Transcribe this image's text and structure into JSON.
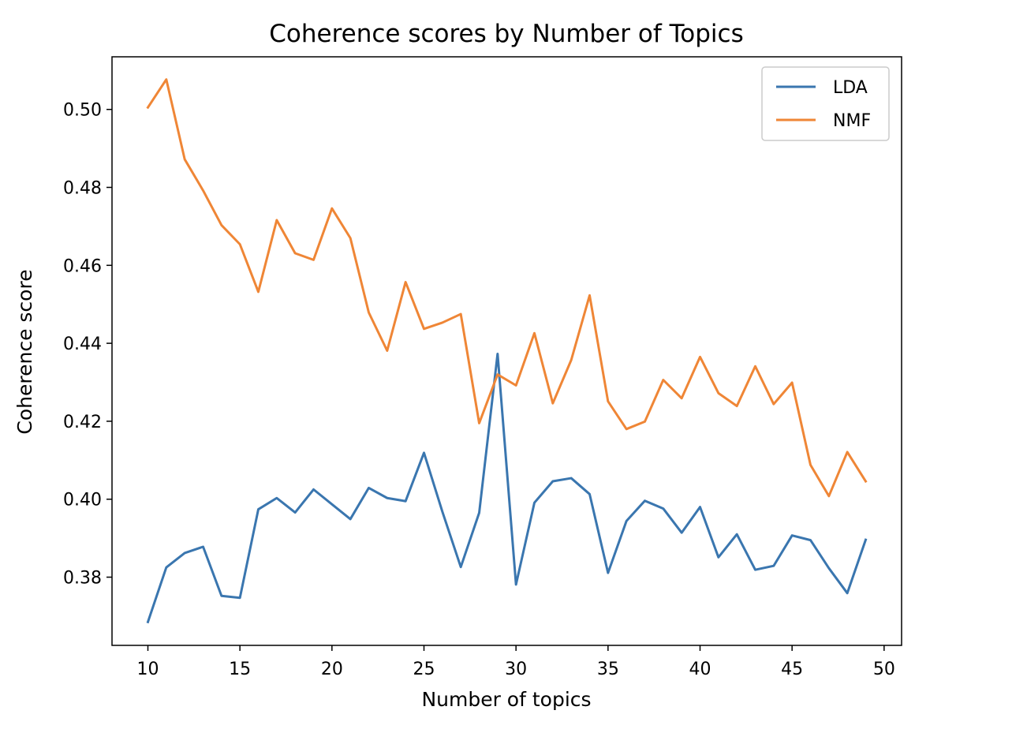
{
  "chart_data": {
    "type": "line",
    "title": "Coherence scores by Number of Topics",
    "xlabel": "Number of topics",
    "ylabel": "Coherence score",
    "xlim": [
      8.05,
      50.95
    ],
    "ylim": [
      0.3625,
      0.5135
    ],
    "xticks": [
      10,
      15,
      20,
      25,
      30,
      35,
      40,
      45,
      50
    ],
    "yticks": [
      0.38,
      0.4,
      0.42,
      0.44,
      0.46,
      0.48,
      0.5
    ],
    "ytick_labels": [
      "0.38",
      "0.40",
      "0.42",
      "0.44",
      "0.46",
      "0.48",
      "0.50"
    ],
    "grid": false,
    "legend_position": "top-right",
    "x": [
      10,
      11,
      12,
      13,
      14,
      15,
      16,
      17,
      18,
      19,
      20,
      21,
      22,
      23,
      24,
      25,
      26,
      27,
      28,
      29,
      30,
      31,
      32,
      33,
      34,
      35,
      36,
      37,
      38,
      39,
      40,
      41,
      42,
      43,
      44,
      45,
      46,
      47,
      48,
      49
    ],
    "series": [
      {
        "name": "LDA",
        "color": "#3a76af",
        "values": [
          0.3685,
          0.3825,
          0.3862,
          0.3878,
          0.3752,
          0.3747,
          0.3974,
          0.4003,
          0.3966,
          0.4025,
          0.3987,
          0.3949,
          0.4029,
          0.4003,
          0.3995,
          0.4119,
          0.3968,
          0.3826,
          0.3965,
          0.4373,
          0.3781,
          0.3991,
          0.4046,
          0.4054,
          0.4013,
          0.3811,
          0.3944,
          0.3996,
          0.3976,
          0.3914,
          0.398,
          0.3851,
          0.391,
          0.3819,
          0.3829,
          0.3907,
          0.3895,
          0.3823,
          0.3759,
          0.3896
        ]
      },
      {
        "name": "NMF",
        "color": "#ef8636",
        "values": [
          0.5005,
          0.5077,
          0.4872,
          0.4792,
          0.4703,
          0.4654,
          0.4532,
          0.4716,
          0.4631,
          0.4614,
          0.4746,
          0.467,
          0.4479,
          0.4381,
          0.4557,
          0.4437,
          0.4453,
          0.4475,
          0.4195,
          0.432,
          0.4292,
          0.4426,
          0.4246,
          0.4357,
          0.4523,
          0.4251,
          0.418,
          0.4199,
          0.4306,
          0.4259,
          0.4365,
          0.4272,
          0.4239,
          0.4341,
          0.4244,
          0.4299,
          0.4088,
          0.4008,
          0.4121,
          0.4046
        ]
      }
    ]
  }
}
